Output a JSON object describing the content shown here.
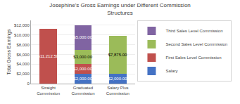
{
  "chart_data": {
    "type": "bar",
    "stacked": true,
    "title": "Josephine's Gross Earnings under Different Commission\nStructures",
    "ylabel": "Total Gross Earnings",
    "categories": [
      "Straight\nCommission",
      "Graduated\nCommission",
      "Salary Plus\nCommission"
    ],
    "series": [
      {
        "name": "Salary",
        "color": "#4472C4",
        "values": [
          0,
          2000,
          2000
        ],
        "value_labels": [
          null,
          "$2,000.00",
          "$2,000.00"
        ]
      },
      {
        "name": "First Sales Level Commission",
        "color": "#C0504D",
        "values": [
          11212.5,
          2000,
          0
        ],
        "value_labels": [
          "$11,212.50",
          "$2,000.00",
          null
        ]
      },
      {
        "name": "Second Sales Level Commission",
        "color": "#9BBB59",
        "values": [
          0,
          3000,
          7875
        ],
        "value_labels": [
          null,
          "$3,000.00",
          "$7,875.00"
        ]
      },
      {
        "name": "Third Sales Level Commission",
        "color": "#8064A2",
        "values": [
          0,
          5000,
          0
        ],
        "value_labels": [
          null,
          "$5,000.00",
          null
        ]
      }
    ],
    "ylim": [
      0,
      13000
    ],
    "yticks": [
      0,
      {
        "value": 2000,
        "label": "$2,000"
      },
      {
        "value": 4000,
        "label": "$4,000"
      },
      {
        "value": 6000,
        "label": "$6,000"
      },
      {
        "value": 8000,
        "label": "$8,000"
      },
      {
        "value": 10000,
        "label": "$10,000"
      },
      {
        "value": 12000,
        "label": "$12,000"
      }
    ],
    "grid": true,
    "data_labels": true,
    "legend": "right"
  }
}
